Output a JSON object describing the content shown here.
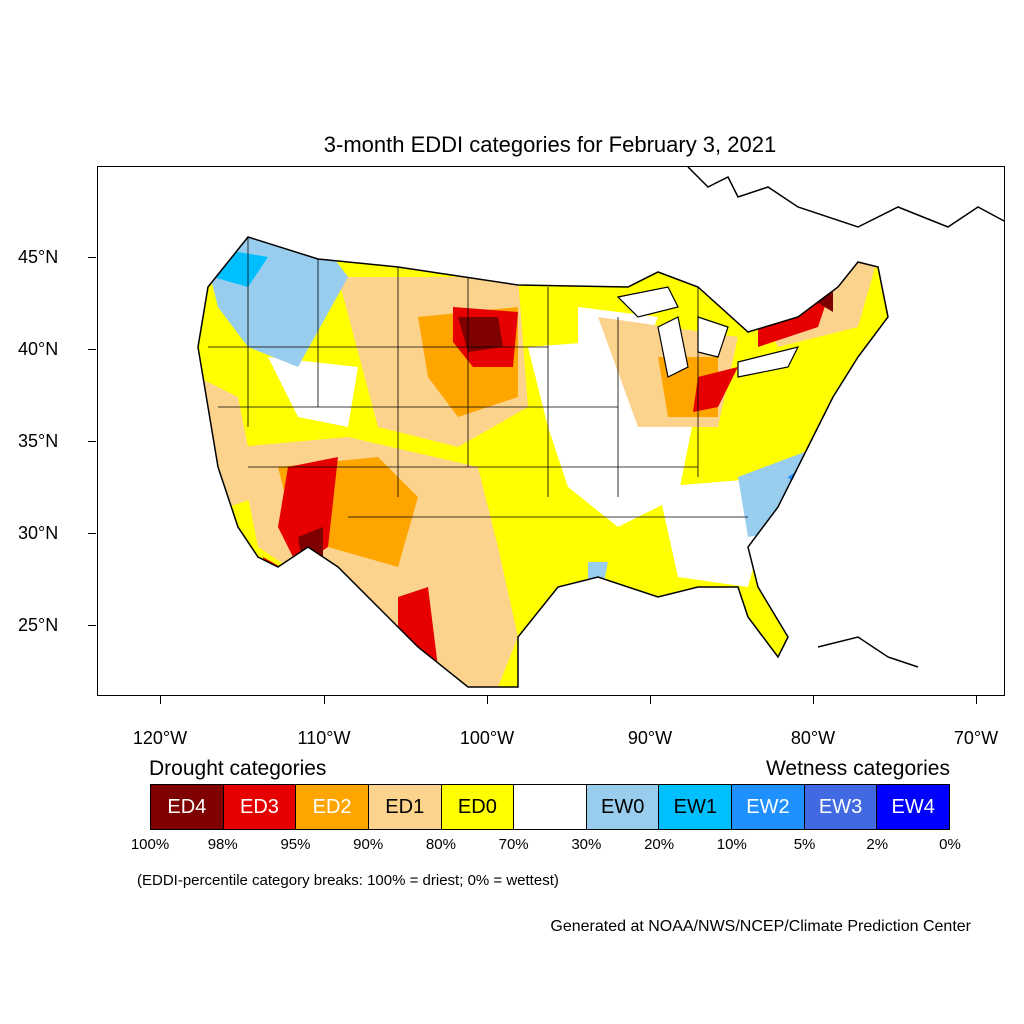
{
  "title": "3-month EDDI categories for February 3, 2021",
  "colors": {
    "ED4": "#7f0000",
    "ED3": "#e60000",
    "ED2": "#ffa500",
    "ED1": "#fcd38c",
    "ED0": "#ffff00",
    "none": "#ffffff",
    "EW0": "#98cdee",
    "EW1": "#00bfff",
    "EW2": "#1e90ff",
    "EW3": "#4169e1",
    "EW4": "#0000ff"
  },
  "axes": {
    "y_ticks": [
      "45°N",
      "40°N",
      "35°N",
      "30°N",
      "25°N"
    ],
    "x_ticks": [
      "120°W",
      "110°W",
      "100°W",
      "90°W",
      "80°W",
      "70°W"
    ]
  },
  "legend": {
    "drought_heading": "Drought categories",
    "wetness_heading": "Wetness categories",
    "boxes": [
      {
        "label": "ED4",
        "color": "#7f0000",
        "text_color": "#ffffff"
      },
      {
        "label": "ED3",
        "color": "#e60000",
        "text_color": "#ffffff"
      },
      {
        "label": "ED2",
        "color": "#ffa500",
        "text_color": "#ffffff"
      },
      {
        "label": "ED1",
        "color": "#fcd38c",
        "text_color": "#000000"
      },
      {
        "label": "ED0",
        "color": "#ffff00",
        "text_color": "#000000"
      },
      {
        "label": "",
        "color": "#ffffff",
        "text_color": "#000000"
      },
      {
        "label": "EW0",
        "color": "#98cdee",
        "text_color": "#000000"
      },
      {
        "label": "EW1",
        "color": "#00bfff",
        "text_color": "#000000"
      },
      {
        "label": "EW2",
        "color": "#1e90ff",
        "text_color": "#ffffff"
      },
      {
        "label": "EW3",
        "color": "#4169e1",
        "text_color": "#ffffff"
      },
      {
        "label": "EW4",
        "color": "#0000ff",
        "text_color": "#ffffff"
      }
    ],
    "breaks": [
      "100%",
      "98%",
      "95%",
      "90%",
      "80%",
      "70%",
      "30%",
      "20%",
      "10%",
      "5%",
      "2%",
      "0%"
    ]
  },
  "note": "(EDDI-percentile category breaks: 100% = driest; 0% = wettest)",
  "credit": "Generated at NOAA/NWS/NCEP/Climate Prediction Center"
}
